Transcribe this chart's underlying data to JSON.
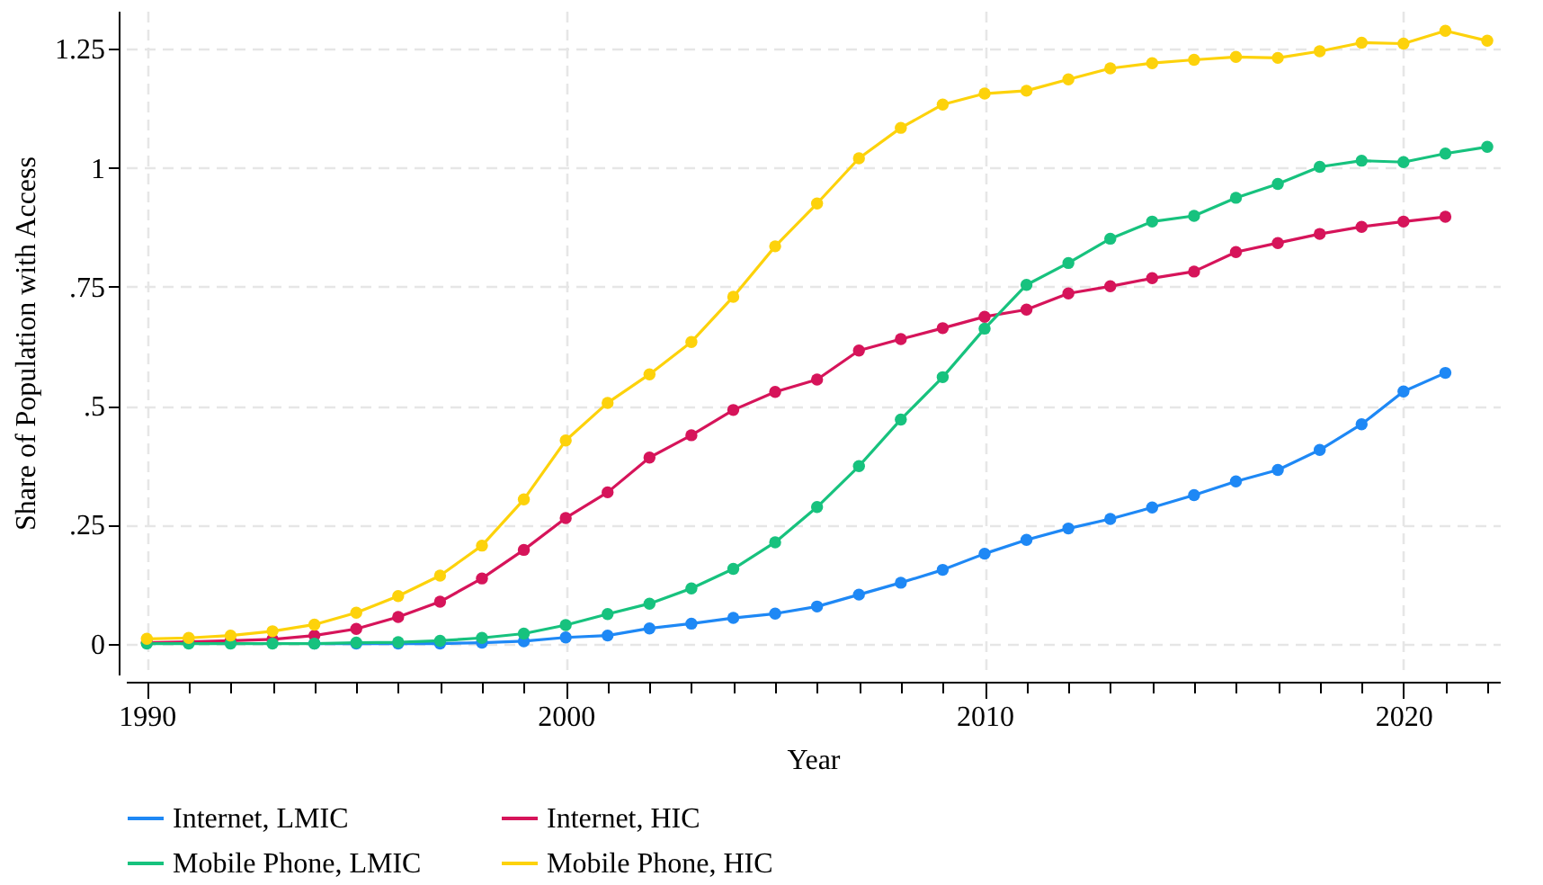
{
  "chart_data": {
    "type": "line",
    "xlabel": "Year",
    "ylabel": "Share of Population with Access",
    "x": [
      1990,
      1991,
      1992,
      1993,
      1994,
      1995,
      1996,
      1997,
      1998,
      1999,
      2000,
      2001,
      2002,
      2003,
      2004,
      2005,
      2006,
      2007,
      2008,
      2009,
      2010,
      2011,
      2012,
      2013,
      2014,
      2015,
      2016,
      2017,
      2018,
      2019,
      2020,
      2021,
      2022
    ],
    "series": [
      {
        "name": "Internet, LMIC",
        "color": "#1e88f5",
        "values": [
          null,
          null,
          null,
          null,
          0,
          0,
          0,
          0,
          0.002,
          0.005,
          0.013,
          0.017,
          0.032,
          0.042,
          0.054,
          0.063,
          0.078,
          0.103,
          0.128,
          0.155,
          0.189,
          0.218,
          0.242,
          0.262,
          0.286,
          0.312,
          0.341,
          0.365,
          0.407,
          0.461,
          0.53,
          0.569,
          null
        ]
      },
      {
        "name": "Internet, HIC",
        "color": "#d6145a",
        "values": [
          0.002,
          0.004,
          0.006,
          0.009,
          0.017,
          0.031,
          0.056,
          0.088,
          0.137,
          0.197,
          0.264,
          0.318,
          0.391,
          0.438,
          0.491,
          0.529,
          0.555,
          0.616,
          0.64,
          0.663,
          0.687,
          0.702,
          0.736,
          0.751,
          0.768,
          0.782,
          0.823,
          0.842,
          0.861,
          0.876,
          0.887,
          0.897,
          null
        ]
      },
      {
        "name": "Mobile Phone, LMIC",
        "color": "#17c27e",
        "values": [
          0,
          0,
          0,
          0,
          0,
          0.002,
          0.003,
          0.006,
          0.012,
          0.021,
          0.039,
          0.062,
          0.084,
          0.116,
          0.157,
          0.213,
          0.287,
          0.373,
          0.471,
          0.56,
          0.662,
          0.754,
          0.8,
          0.851,
          0.887,
          0.899,
          0.937,
          0.966,
          1.002,
          1.015,
          1.012,
          1.03,
          1.044
        ]
      },
      {
        "name": "Mobile Phone, HIC",
        "color": "#fdd20b",
        "values": [
          0.01,
          0.012,
          0.017,
          0.026,
          0.04,
          0.065,
          0.1,
          0.143,
          0.206,
          0.303,
          0.427,
          0.506,
          0.566,
          0.634,
          0.729,
          0.835,
          0.925,
          1.02,
          1.084,
          1.133,
          1.156,
          1.162,
          1.186,
          1.209,
          1.22,
          1.227,
          1.233,
          1.231,
          1.245,
          1.263,
          1.261,
          1.288,
          1.267
        ]
      }
    ],
    "xlim": [
      1989.5,
      2022.3
    ],
    "xticks": [
      1990,
      {
        "value": 1991,
        "label": null
      },
      {
        "value": 1992,
        "label": null
      },
      {
        "value": 1993,
        "label": null
      },
      {
        "value": 1994,
        "label": null
      },
      {
        "value": 1995,
        "label": null
      },
      {
        "value": 1996,
        "label": null
      },
      {
        "value": 1997,
        "label": null
      },
      {
        "value": 1998,
        "label": null
      },
      {
        "value": 1999,
        "label": null
      },
      2000,
      {
        "value": 2001,
        "label": null
      },
      {
        "value": 2002,
        "label": null
      },
      {
        "value": 2003,
        "label": null
      },
      {
        "value": 2004,
        "label": null
      },
      {
        "value": 2005,
        "label": null
      },
      {
        "value": 2006,
        "label": null
      },
      {
        "value": 2007,
        "label": null
      },
      {
        "value": 2008,
        "label": null
      },
      {
        "value": 2009,
        "label": null
      },
      2010,
      {
        "value": 2011,
        "label": null
      },
      {
        "value": 2012,
        "label": null
      },
      {
        "value": 2013,
        "label": null
      },
      {
        "value": 2014,
        "label": null
      },
      {
        "value": 2015,
        "label": null
      },
      {
        "value": 2016,
        "label": null
      },
      {
        "value": 2017,
        "label": null
      },
      {
        "value": 2018,
        "label": null
      },
      {
        "value": 2019,
        "label": null
      },
      2020,
      {
        "value": 2021,
        "label": null
      },
      {
        "value": 2022,
        "label": null
      }
    ],
    "ylim": [
      -0.065,
      1.33
    ],
    "yticks": [
      0,
      {
        "value": 0.25,
        "label": ".25"
      },
      {
        "value": 0.5,
        "label": ".5"
      },
      {
        "value": 0.75,
        "label": ".75"
      },
      1,
      {
        "value": 1.25,
        "label": "1.25"
      }
    ],
    "grid": true,
    "legend": "bottom",
    "marker": "circle",
    "line_style": "solid"
  }
}
